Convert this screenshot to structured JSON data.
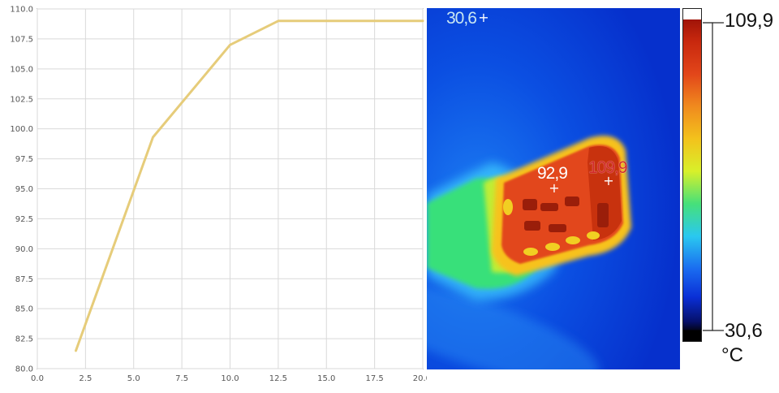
{
  "chart_data": {
    "type": "line",
    "title": "",
    "xlabel": "",
    "ylabel": "",
    "xlim": [
      0,
      20
    ],
    "ylim": [
      80,
      110
    ],
    "grid": true,
    "x_ticks": [
      "0.0",
      "2.5",
      "5.0",
      "7.5",
      "10.0",
      "12.5",
      "15.0",
      "17.5",
      "20.0"
    ],
    "y_ticks": [
      "80.0",
      "82.5",
      "85.0",
      "87.5",
      "90.0",
      "92.5",
      "95.0",
      "97.5",
      "100.0",
      "102.5",
      "105.0",
      "107.5",
      "110.0"
    ],
    "series": [
      {
        "color": "#e6cc7a",
        "x": [
          2,
          6,
          10,
          12.5,
          20
        ],
        "y": [
          81.5,
          99.3,
          107,
          109,
          109
        ]
      }
    ]
  },
  "thermal_image": {
    "spot_label": "30,6",
    "center_label": "92,9",
    "hot_label": "109,9",
    "scale_max": "109,9",
    "scale_min": "30,6",
    "unit": "°C",
    "colors": {
      "background": "#062fd6",
      "hot": "#e2461a",
      "halo": "#35e27a"
    }
  }
}
